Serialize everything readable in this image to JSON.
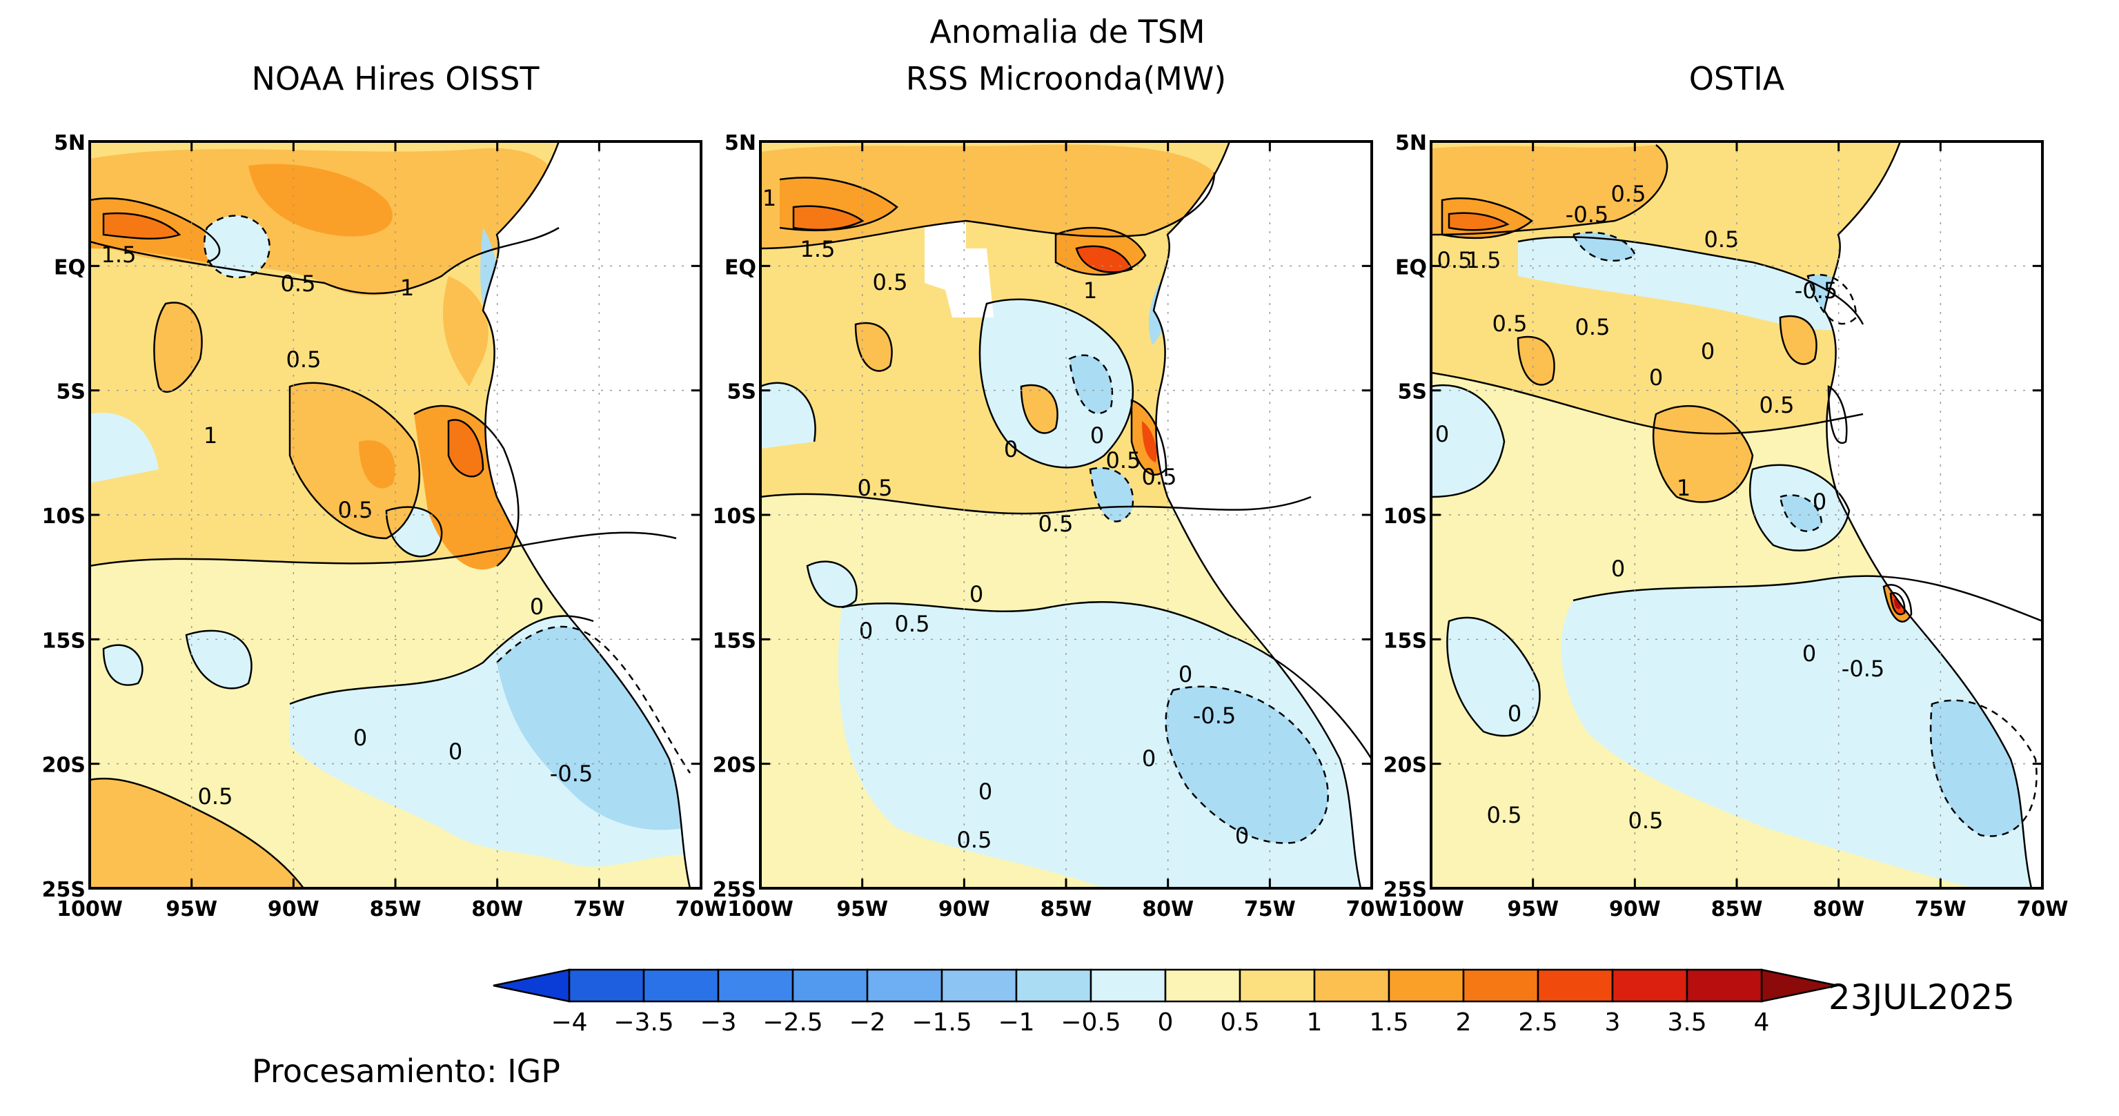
{
  "header": {
    "main_title_line1": "Anomalia de TSM",
    "panel_titles": [
      "NOAA Hires OISST",
      "RSS Microonda(MW)",
      "OSTIA"
    ]
  },
  "axes": {
    "lat_labels": [
      "5N",
      "EQ",
      "5S",
      "10S",
      "15S",
      "20S",
      "25S"
    ],
    "lon_labels": [
      "100W",
      "95W",
      "90W",
      "85W",
      "80W",
      "75W",
      "70W"
    ],
    "lat_range": [
      -25,
      5
    ],
    "lon_range": [
      -100,
      -70
    ]
  },
  "colorbar": {
    "levels": [
      "-4",
      "-3.5",
      "-3",
      "-2.5",
      "-2",
      "-1.5",
      "-1",
      "-0.5",
      "0",
      "0.5",
      "1",
      "1.5",
      "2",
      "2.5",
      "3",
      "3.5",
      "4"
    ],
    "colors": [
      "#1e5fe0",
      "#2a72e8",
      "#3c86ee",
      "#5299f0",
      "#6eaef2",
      "#8cc4f4",
      "#aadcf4",
      "#d8f4fa",
      "#fbf4b4",
      "#fce080",
      "#fcc050",
      "#faa028",
      "#f67814",
      "#f04a0c",
      "#dc2010",
      "#b80e0e"
    ],
    "under_color": "#0a3cd8",
    "over_color": "#8c0a0a"
  },
  "date": "23JUL2025",
  "credit": "Procesamiento: IGP",
  "panels": [
    {
      "name": "NOAA Hires OISST",
      "contour_labels": [
        "1.5",
        "0.5",
        "1",
        "0.5",
        "1",
        "0.5",
        "0",
        "0",
        "0",
        "-0.5",
        "0.5"
      ]
    },
    {
      "name": "RSS Microonda(MW)",
      "contour_labels": [
        "1",
        "1.5",
        "0.5",
        "1",
        "0",
        "0",
        "0.5",
        "0.5",
        "0.5",
        "0.5",
        "0",
        "0.5",
        "0",
        "0",
        "-0.5",
        "0",
        "0",
        "0.5",
        "0"
      ]
    },
    {
      "name": "OSTIA",
      "contour_labels": [
        "0.5",
        "-0.5",
        "0.5",
        "1.5",
        "-0.5",
        "0.5",
        "0.5",
        "0",
        "0.5",
        "0",
        "1",
        "0.5",
        "0",
        "0",
        "0",
        "-0.5",
        "0",
        "0",
        "0.5",
        "0.5"
      ]
    }
  ]
}
